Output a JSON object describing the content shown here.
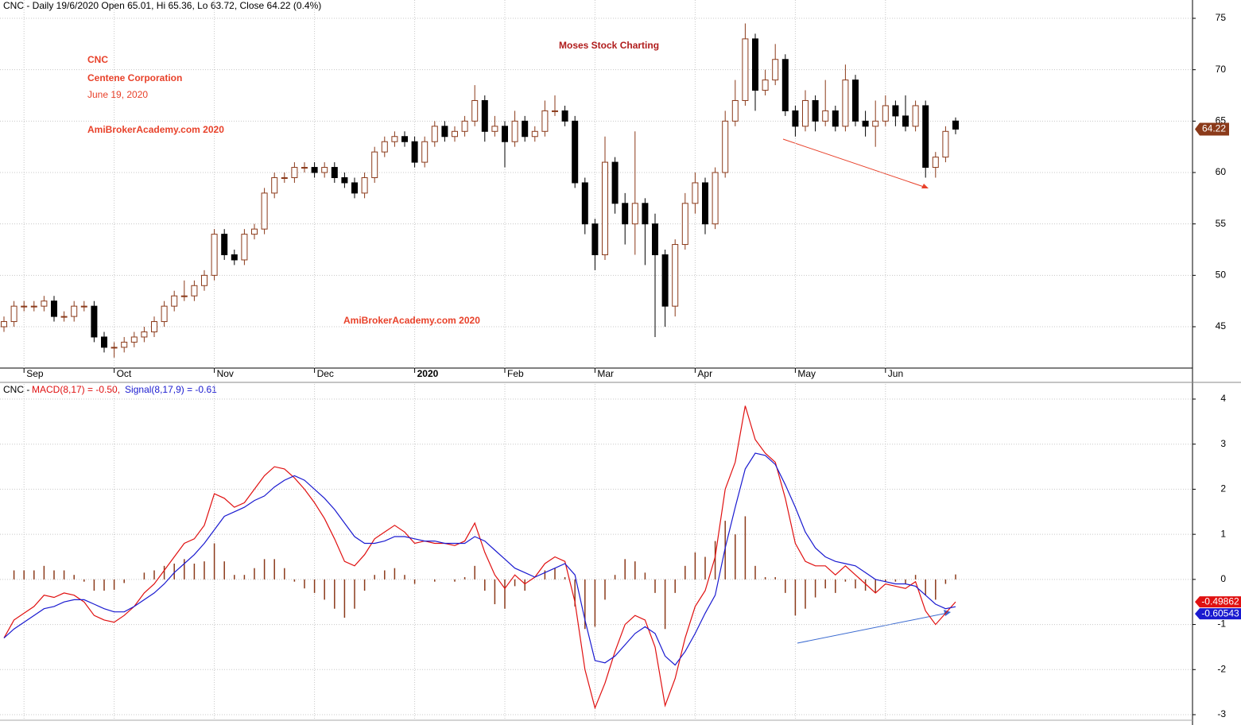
{
  "chart_data": [
    {
      "type": "candlestick",
      "title": "CNC - Daily 19/6/2020 Open 65.01, Hi 65.36, Lo 63.72, Close 64.22 (0.4%)",
      "annotations": [
        {
          "text": "CNC",
          "color": "#e8412a"
        },
        {
          "text": "Centene Corporation",
          "color": "#e8412a"
        },
        {
          "text": "June 19, 2020",
          "color": "#e8412a"
        },
        {
          "text": "AmiBrokerAcademy.com 2020",
          "color": "#e8412a"
        },
        {
          "text": "Moses Stock Charting",
          "color": "#b01c1c"
        },
        {
          "text": "AmiBrokerAcademy.com  2020",
          "color": "#e8412a"
        }
      ],
      "categories": [
        null,
        null,
        "Sep",
        null,
        null,
        null,
        null,
        null,
        null,
        null,
        null,
        "Oct",
        null,
        null,
        null,
        null,
        null,
        null,
        null,
        null,
        null,
        "Nov",
        null,
        null,
        null,
        null,
        null,
        null,
        null,
        null,
        null,
        "Dec",
        null,
        null,
        null,
        null,
        null,
        null,
        null,
        null,
        null,
        "2020",
        null,
        null,
        null,
        null,
        null,
        null,
        null,
        null,
        "Feb",
        null,
        null,
        null,
        null,
        null,
        null,
        null,
        null,
        "Mar",
        null,
        null,
        null,
        null,
        null,
        null,
        null,
        null,
        null,
        "Apr",
        null,
        null,
        null,
        null,
        null,
        null,
        null,
        null,
        null,
        "May",
        null,
        null,
        null,
        null,
        null,
        null,
        null,
        null,
        "Jun",
        null,
        null,
        null,
        null,
        null,
        null,
        null
      ],
      "open": [
        45,
        45.5,
        47,
        47,
        47,
        47.5,
        46,
        46,
        47,
        47,
        44,
        43,
        43,
        43.5,
        44,
        44.5,
        45.5,
        47,
        48,
        48,
        49,
        50,
        54,
        52,
        51.5,
        54,
        54.5,
        58,
        59.5,
        59.5,
        60.5,
        60.5,
        60,
        60.5,
        59.5,
        59,
        58,
        59.5,
        62,
        63,
        63.5,
        63,
        61,
        63,
        64.5,
        63.5,
        64,
        65,
        67,
        64,
        64.5,
        63,
        65,
        63.5,
        64,
        66,
        66,
        65,
        59,
        55,
        52,
        61,
        57,
        55,
        57,
        55,
        52,
        47,
        53,
        57,
        59,
        55,
        60,
        65,
        67,
        73,
        68,
        69,
        71,
        66,
        64.5,
        67,
        65,
        66,
        64.5,
        69,
        65,
        64.5,
        65,
        66.5,
        65.5,
        64.5,
        66.5,
        60.5,
        61.5,
        65.01
      ],
      "high": [
        46,
        47.5,
        47.5,
        47.5,
        48,
        48,
        46.5,
        47.5,
        47.5,
        47.5,
        44.5,
        43.5,
        44,
        44.5,
        45,
        46,
        47.5,
        48.5,
        49.5,
        49.5,
        50.5,
        54.5,
        54.5,
        52.5,
        54.5,
        55,
        58.5,
        60,
        60,
        61,
        61,
        61,
        61,
        61,
        60,
        59.5,
        60,
        62.5,
        63.5,
        64,
        64,
        63.5,
        63.5,
        65,
        65,
        64.5,
        65.5,
        68.5,
        67.5,
        65.5,
        65,
        66,
        65.5,
        64.5,
        67,
        67.5,
        66.5,
        65.5,
        59.5,
        55.5,
        63.5,
        61.5,
        58,
        64,
        57.5,
        56,
        52.5,
        53.5,
        58,
        60,
        59.5,
        60.5,
        66,
        69,
        74.5,
        73.5,
        70,
        72.5,
        71.5,
        66.5,
        68,
        67.5,
        69,
        66.5,
        70.5,
        69.5,
        66,
        67,
        67.5,
        67,
        67.5,
        67,
        67,
        62,
        64.5,
        65.36
      ],
      "low": [
        44.5,
        45,
        46.5,
        46.5,
        46.5,
        45.5,
        45.5,
        45.5,
        46.5,
        43.5,
        42.5,
        42,
        42.5,
        43,
        43.5,
        44,
        45,
        46.5,
        47.5,
        47.5,
        48.5,
        49.5,
        51.5,
        51,
        51,
        53.5,
        54,
        57.5,
        59,
        59,
        60,
        59.5,
        59.5,
        59,
        58.5,
        57.5,
        57.5,
        59,
        61.5,
        62.5,
        62.5,
        60.5,
        60.5,
        62.5,
        63,
        63,
        63.5,
        64.5,
        63,
        63.5,
        60.5,
        62.5,
        63,
        63,
        63.5,
        65.5,
        64.5,
        58.5,
        54,
        50.5,
        51.5,
        56,
        53,
        52,
        51,
        44,
        45,
        46,
        52.5,
        56,
        54,
        54.5,
        59.5,
        64.5,
        66.5,
        66,
        67.5,
        68.5,
        65.5,
        63.5,
        64,
        64,
        64.5,
        64,
        64,
        64.5,
        63.5,
        62.5,
        64.5,
        64.5,
        64,
        64,
        59.5,
        59.5,
        61,
        63.72
      ],
      "close": [
        45.5,
        47,
        47,
        47,
        47.5,
        46,
        46,
        47,
        47,
        44,
        43,
        43,
        43.5,
        44,
        44.5,
        45.5,
        47,
        48,
        48,
        49,
        50,
        54,
        52,
        51.5,
        54,
        54.5,
        58,
        59.5,
        59.5,
        60.5,
        60.5,
        60,
        60.5,
        59.5,
        59,
        58,
        59.5,
        62,
        63,
        63.5,
        63,
        61,
        63,
        64.5,
        63.5,
        64,
        65,
        67,
        64,
        64.5,
        63,
        65,
        63.5,
        64,
        66,
        66,
        65,
        59,
        55,
        52,
        61,
        57,
        55,
        57,
        55,
        52,
        47,
        53,
        57,
        59,
        55,
        60,
        65,
        67,
        73,
        68,
        69,
        71,
        66,
        64.5,
        67,
        65,
        66,
        64.5,
        69,
        65,
        64.5,
        65,
        66.5,
        65.5,
        64.5,
        66.5,
        60.5,
        61.5,
        64,
        64.22
      ],
      "up_color": "#8b3a1a",
      "down_color": "#000000",
      "ylim": [
        40.98,
        76.78
      ],
      "yticks": [
        45,
        50,
        55,
        60,
        65,
        70,
        75
      ],
      "grid": true
    },
    {
      "type": "line",
      "title": "CNC -",
      "series": [
        {
          "name": "MACD(8,17) = -0.50,",
          "color": "#e01010",
          "values": [
            -1.3,
            -0.9,
            -0.75,
            -0.6,
            -0.35,
            -0.4,
            -0.3,
            -0.35,
            -0.5,
            -0.8,
            -0.9,
            -0.95,
            -0.8,
            -0.6,
            -0.3,
            -0.1,
            0.2,
            0.5,
            0.8,
            0.9,
            1.2,
            1.9,
            1.8,
            1.6,
            1.7,
            2.0,
            2.3,
            2.5,
            2.45,
            2.25,
            2.0,
            1.7,
            1.35,
            0.9,
            0.4,
            0.3,
            0.55,
            0.9,
            1.05,
            1.2,
            1.05,
            0.8,
            0.85,
            0.8,
            0.8,
            0.75,
            0.85,
            1.25,
            0.6,
            0.1,
            -0.2,
            0.1,
            -0.1,
            0.05,
            0.35,
            0.5,
            0.4,
            -0.5,
            -2.0,
            -2.85,
            -2.3,
            -1.6,
            -1.0,
            -0.8,
            -0.9,
            -1.5,
            -2.8,
            -2.2,
            -1.3,
            -0.6,
            -0.25,
            0.5,
            2.0,
            2.6,
            3.85,
            3.1,
            2.8,
            2.6,
            1.8,
            0.8,
            0.4,
            0.3,
            0.3,
            0.1,
            0.3,
            0.1,
            -0.1,
            -0.3,
            -0.1,
            -0.15,
            -0.2,
            -0.05,
            -0.7,
            -1.0,
            -0.75,
            -0.49862
          ]
        },
        {
          "name": "Signal(8,17,9) = -0.61",
          "color": "#1a1ad0",
          "values": [
            -1.3,
            -1.1,
            -0.95,
            -0.8,
            -0.65,
            -0.6,
            -0.5,
            -0.45,
            -0.45,
            -0.55,
            -0.65,
            -0.72,
            -0.72,
            -0.6,
            -0.45,
            -0.3,
            -0.1,
            0.15,
            0.35,
            0.55,
            0.8,
            1.1,
            1.4,
            1.5,
            1.6,
            1.75,
            1.85,
            2.05,
            2.2,
            2.3,
            2.2,
            2.0,
            1.8,
            1.55,
            1.25,
            0.95,
            0.8,
            0.8,
            0.85,
            0.95,
            0.95,
            0.9,
            0.85,
            0.85,
            0.8,
            0.8,
            0.8,
            0.95,
            0.85,
            0.65,
            0.45,
            0.25,
            0.15,
            0.05,
            0.15,
            0.25,
            0.35,
            0.1,
            -0.9,
            -1.8,
            -1.85,
            -1.7,
            -1.45,
            -1.2,
            -1.05,
            -1.2,
            -1.7,
            -1.9,
            -1.6,
            -1.2,
            -0.75,
            -0.35,
            0.7,
            1.6,
            2.45,
            2.8,
            2.75,
            2.55,
            2.1,
            1.6,
            1.05,
            0.7,
            0.5,
            0.4,
            0.35,
            0.3,
            0.15,
            0.0,
            -0.05,
            -0.1,
            -0.1,
            -0.15,
            -0.35,
            -0.55,
            -0.65,
            -0.60543
          ]
        }
      ],
      "histogram": {
        "color": "#8b3a1a",
        "values": [
          0,
          0.2,
          0.2,
          0.2,
          0.3,
          0.2,
          0.2,
          0.1,
          -0.05,
          -0.25,
          -0.25,
          -0.23,
          -0.08,
          0,
          0.15,
          0.2,
          0.3,
          0.35,
          0.45,
          0.35,
          0.4,
          0.8,
          0.4,
          0.1,
          0.1,
          0.25,
          0.45,
          0.45,
          0.25,
          -0.05,
          -0.2,
          -0.3,
          -0.45,
          -0.65,
          -0.85,
          -0.65,
          -0.25,
          0.1,
          0.2,
          0.25,
          0.1,
          -0.1,
          0,
          -0.05,
          0,
          -0.05,
          0.05,
          0.3,
          -0.25,
          -0.55,
          -0.65,
          -0.15,
          -0.25,
          0,
          0.2,
          0.25,
          0.05,
          -0.6,
          -1.1,
          -1.05,
          -0.45,
          0.1,
          0.45,
          0.4,
          0.15,
          -0.3,
          -1.1,
          -0.3,
          0.3,
          0.6,
          0.5,
          0.85,
          1.3,
          1.0,
          1.4,
          0.3,
          0.05,
          0.05,
          -0.3,
          -0.8,
          -0.65,
          -0.4,
          -0.2,
          -0.3,
          -0.05,
          -0.2,
          -0.25,
          -0.3,
          -0.05,
          -0.05,
          -0.1,
          0.1,
          -0.35,
          -0.45,
          -0.1,
          0.11
        ]
      },
      "ylim": [
        -3.106,
        4.335
      ],
      "yticks": [
        -3,
        -2,
        -1,
        0,
        1,
        2,
        3,
        4
      ],
      "grid": true
    }
  ]
}
